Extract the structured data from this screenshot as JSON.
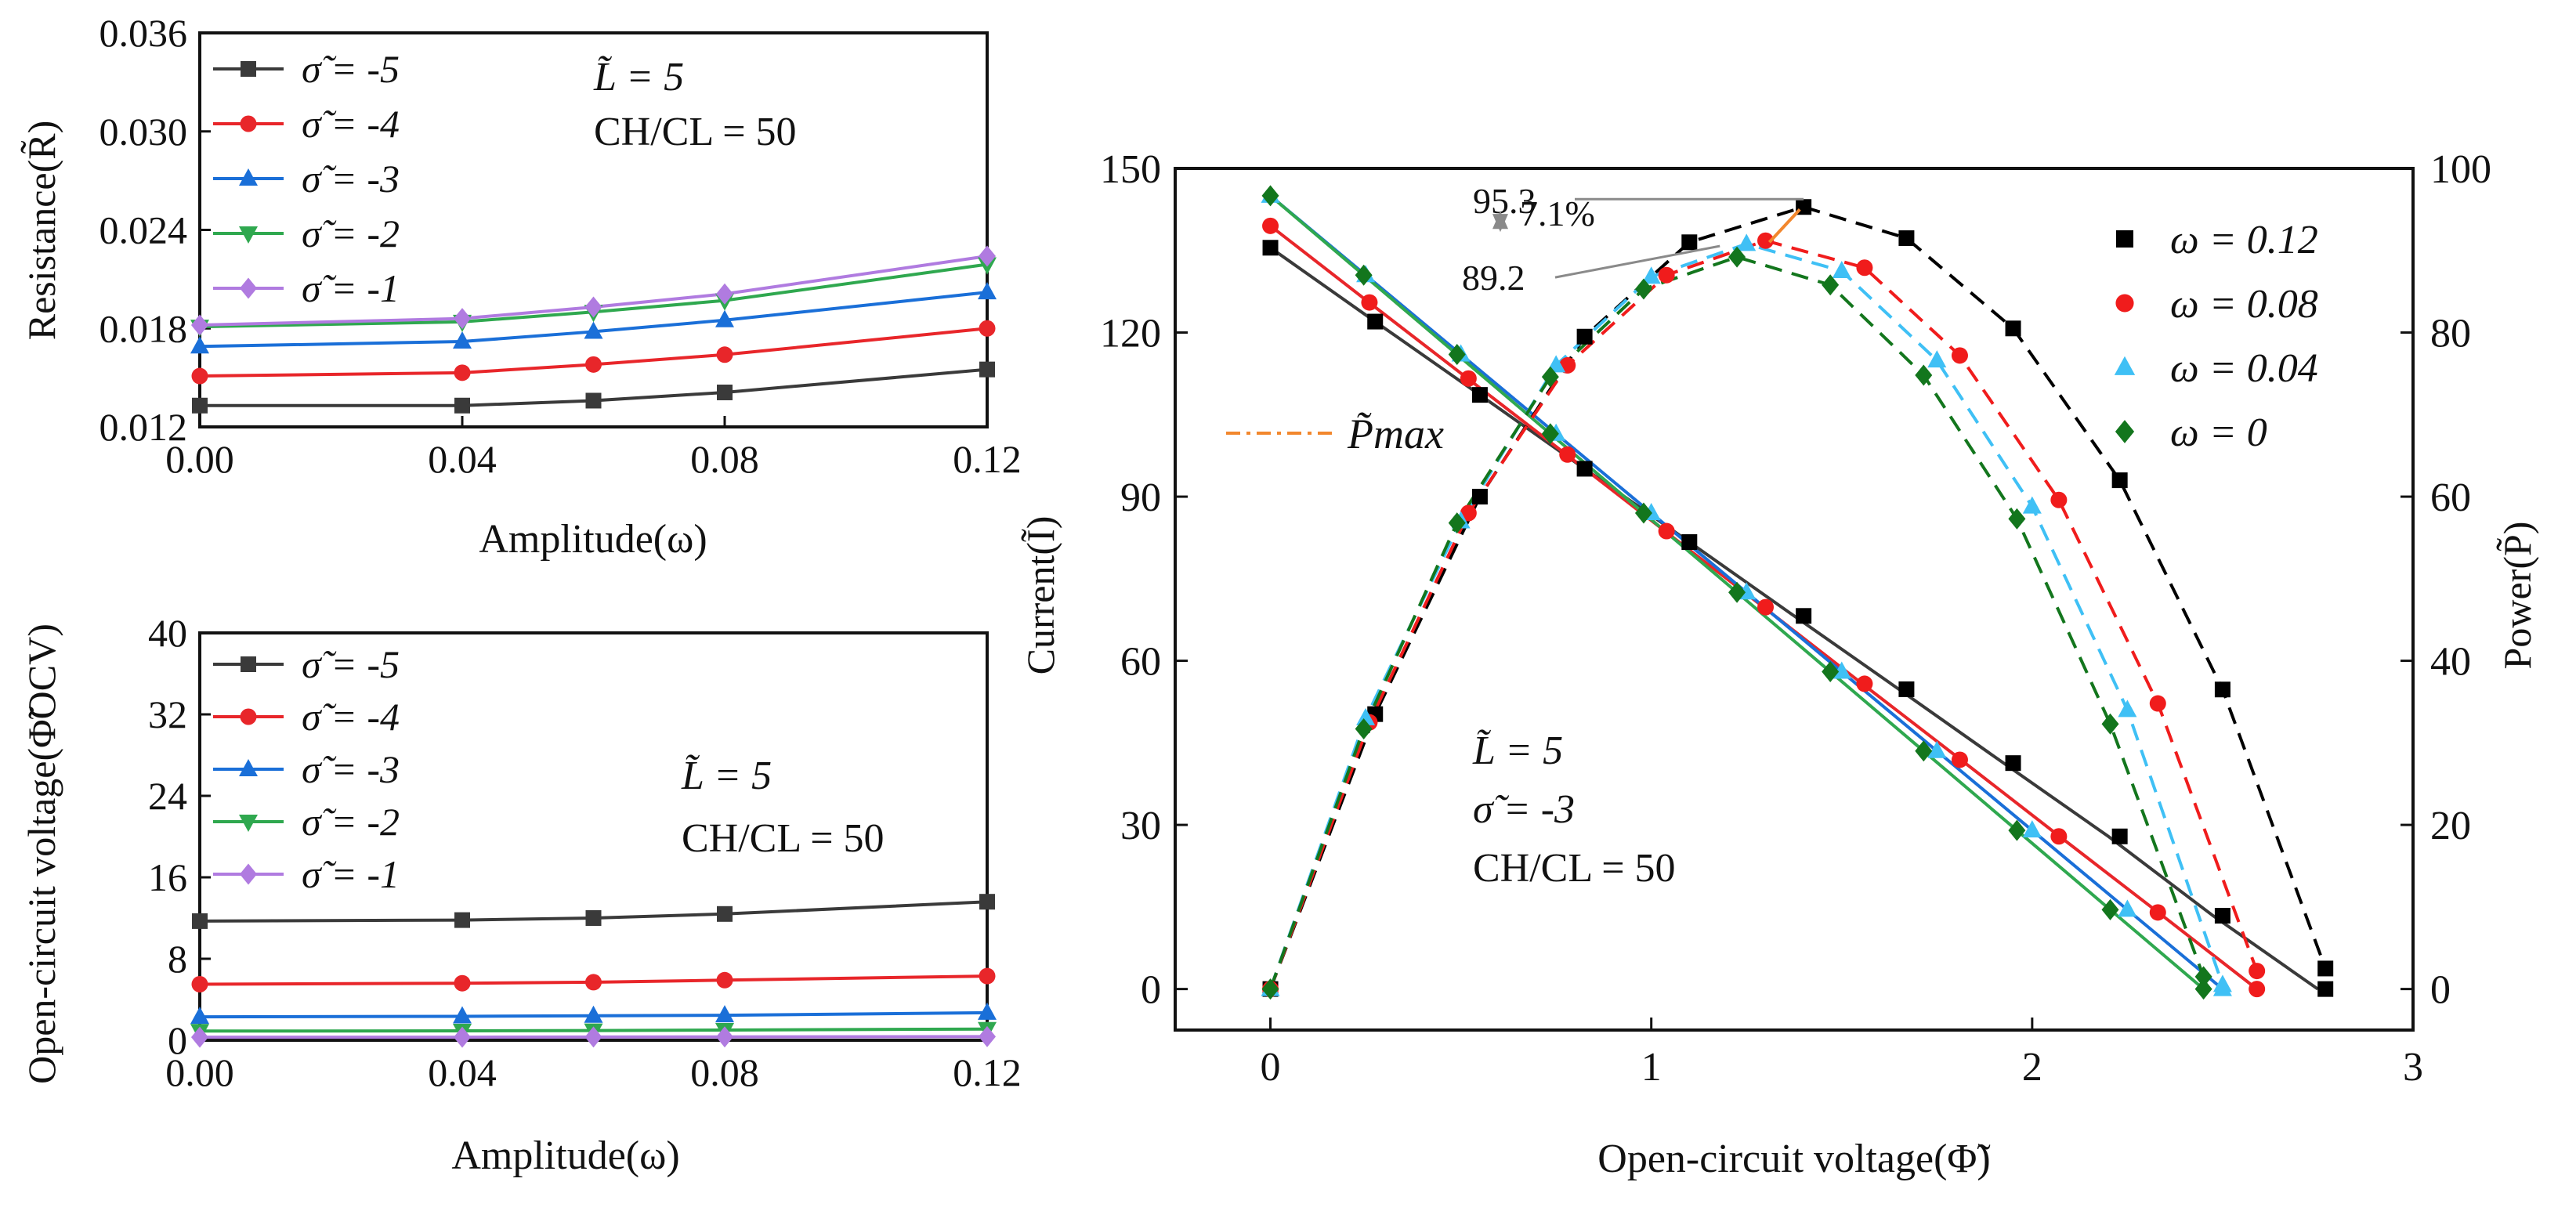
{
  "colors": {
    "s5": "#3a3a3a",
    "s4": "#e8262a",
    "s3": "#1a6fd8",
    "s2": "#2fa84f",
    "s1": "#b07be0",
    "w012": "#000000",
    "w008": "#f01c1c",
    "w004": "#3fc0f5",
    "w0": "#13761d",
    "pmax": "#f2872d",
    "annot": "#8a8a8a",
    "axis": "#111111"
  },
  "chart_data": [
    {
      "id": "resistance",
      "type": "line",
      "xlabel": "Amplitude(ω)",
      "ylabel": "Resistance(R̃)",
      "xlim": [
        0,
        0.12
      ],
      "ylim": [
        0.012,
        0.036
      ],
      "xticks": [
        "0.00",
        "0.04",
        "0.08",
        "0.12"
      ],
      "yticks": [
        "0.012",
        "0.018",
        "0.024",
        "0.030",
        "0.036"
      ],
      "annotations": [
        "L̃ = 5",
        "CH/CL = 50"
      ],
      "x": [
        0,
        0.04,
        0.06,
        0.08,
        0.12
      ],
      "series": [
        {
          "name": "σ̃ = -5",
          "marker": "square",
          "color_key": "s5",
          "values": [
            0.0133,
            0.0133,
            0.0136,
            0.0141,
            0.0155
          ]
        },
        {
          "name": "σ̃ = -4",
          "marker": "circle",
          "color_key": "s4",
          "values": [
            0.0151,
            0.0153,
            0.0158,
            0.0164,
            0.018
          ]
        },
        {
          "name": "σ̃ = -3",
          "marker": "triangle-up",
          "color_key": "s3",
          "values": [
            0.0169,
            0.0172,
            0.0178,
            0.0185,
            0.0202
          ]
        },
        {
          "name": "σ̃ = -2",
          "marker": "triangle-down",
          "color_key": "s2",
          "values": [
            0.0181,
            0.0184,
            0.019,
            0.0197,
            0.0219
          ]
        },
        {
          "name": "σ̃ = -1",
          "marker": "diamond",
          "color_key": "s1",
          "values": [
            0.0182,
            0.0186,
            0.0193,
            0.0201,
            0.0224
          ]
        }
      ]
    },
    {
      "id": "ocv",
      "type": "line",
      "xlabel": "Amplitude(ω)",
      "ylabel": "Open-circuit voltage(Φ̃OCV)",
      "xlim": [
        0,
        0.12
      ],
      "ylim": [
        0,
        40
      ],
      "xticks": [
        "0.00",
        "0.04",
        "0.08",
        "0.12"
      ],
      "yticks": [
        "0",
        "8",
        "16",
        "24",
        "32",
        "40"
      ],
      "annotations": [
        "L̃ = 5",
        "CH/CL = 50"
      ],
      "x": [
        0,
        0.04,
        0.06,
        0.08,
        0.12
      ],
      "series": [
        {
          "name": "σ̃ = -5",
          "marker": "square",
          "color_key": "s5",
          "values": [
            11.7,
            11.8,
            12.0,
            12.4,
            13.6
          ]
        },
        {
          "name": "σ̃ = -4",
          "marker": "circle",
          "color_key": "s4",
          "values": [
            5.5,
            5.6,
            5.7,
            5.9,
            6.3
          ]
        },
        {
          "name": "σ̃ = -3",
          "marker": "triangle-up",
          "color_key": "s3",
          "values": [
            2.3,
            2.35,
            2.4,
            2.45,
            2.7
          ]
        },
        {
          "name": "σ̃ = -2",
          "marker": "triangle-down",
          "color_key": "s2",
          "values": [
            0.9,
            0.92,
            0.95,
            1.0,
            1.1
          ]
        },
        {
          "name": "σ̃ = -1",
          "marker": "diamond",
          "color_key": "s1",
          "values": [
            0.3,
            0.3,
            0.32,
            0.33,
            0.36
          ]
        }
      ]
    },
    {
      "id": "iv-power",
      "type": "line",
      "xlabel": "Open-circuit voltage(Φ̃)",
      "ylabel": "Current(Ĩ)",
      "y2label": "Power(P̃)",
      "xlim": [
        -0.25,
        3.0
      ],
      "ylim": [
        -7.5,
        150
      ],
      "y2lim": [
        -5,
        100
      ],
      "xticks": [
        "0",
        "1",
        "2",
        "3"
      ],
      "yticks": [
        "0",
        "30",
        "60",
        "90",
        "120",
        "150"
      ],
      "y2ticks": [
        "0",
        "20",
        "40",
        "60",
        "80",
        "100"
      ],
      "annotations": [
        "L̃ = 5",
        "σ̃ = -3",
        "CH/CL = 50"
      ],
      "peak_labels": [
        "95.3",
        "7.1%",
        "89.2"
      ],
      "pmax_label": "P̃max",
      "current_series": [
        {
          "name": "ω = 0.12",
          "color_key": "s5",
          "x": [
            0,
            0.275,
            0.55,
            0.825,
            1.1,
            1.375,
            1.65,
            1.925,
            2.2,
            2.475,
            2.75
          ],
          "values": [
            135.5,
            122,
            108.6,
            95.1,
            81.7,
            68.2,
            54.8,
            41.3,
            27.9,
            13.4,
            0
          ]
        },
        {
          "name": "ω = 0.08",
          "color_key": "s4",
          "x": [
            0,
            0.259,
            0.518,
            0.777,
            1.036,
            1.295,
            1.554,
            1.813,
            2.072,
            2.331,
            2.59
          ],
          "values": [
            139.5,
            125.5,
            111.6,
            97.7,
            83.7,
            69.8,
            55.8,
            41.9,
            27.9,
            14,
            0
          ]
        },
        {
          "name": "ω = 0.04",
          "color_key": "s3",
          "x": [
            0,
            0.25,
            0.5,
            0.75,
            1.0,
            1.25,
            1.5,
            1.75,
            2.0,
            2.25,
            2.5
          ],
          "values": [
            145,
            130.5,
            116,
            101.5,
            87,
            72.5,
            58,
            43.5,
            29,
            14.5,
            0
          ]
        },
        {
          "name": "ω = 0",
          "color_key": "s2",
          "x": [
            0,
            0.245,
            0.49,
            0.735,
            0.98,
            1.225,
            1.47,
            1.715,
            1.96,
            2.205,
            2.45
          ],
          "values": [
            145,
            130.5,
            116,
            101.5,
            87,
            72.5,
            58,
            43.5,
            29,
            14.5,
            0
          ]
        }
      ],
      "power_series": [
        {
          "name": "ω = 0.12",
          "marker": "square",
          "color_key": "w012",
          "x": [
            0,
            0.275,
            0.55,
            0.825,
            1.1,
            1.4,
            1.67,
            1.95,
            2.23,
            2.5,
            2.77
          ],
          "values": [
            0,
            33.5,
            60,
            79.5,
            91,
            95.3,
            91.5,
            80.5,
            62,
            36.5,
            2.5
          ]
        },
        {
          "name": "ω = 0.08",
          "marker": "circle",
          "color_key": "w008",
          "x": [
            0,
            0.26,
            0.52,
            0.78,
            1.04,
            1.3,
            1.56,
            1.81,
            2.07,
            2.33,
            2.59
          ],
          "values": [
            0,
            32.5,
            58,
            76,
            87,
            91.2,
            87.9,
            77.2,
            59.6,
            34.8,
            2.2
          ]
        },
        {
          "name": "ω = 0.04",
          "marker": "triangle-up",
          "color_key": "w004",
          "x": [
            0,
            0.25,
            0.5,
            0.75,
            1.0,
            1.25,
            1.5,
            1.75,
            2.0,
            2.25,
            2.5
          ],
          "values": [
            0,
            33,
            57,
            76,
            86.8,
            90.8,
            87.5,
            76.6,
            58.8,
            34,
            0.5
          ]
        },
        {
          "name": "ω = 0",
          "marker": "diamond",
          "color_key": "w0",
          "x": [
            0,
            0.245,
            0.49,
            0.735,
            0.98,
            1.225,
            1.47,
            1.715,
            1.96,
            2.205,
            2.45
          ],
          "values": [
            0,
            31.7,
            56.8,
            74.6,
            85.3,
            89.2,
            85.8,
            74.8,
            57.3,
            32.3,
            1.5
          ]
        }
      ]
    }
  ]
}
